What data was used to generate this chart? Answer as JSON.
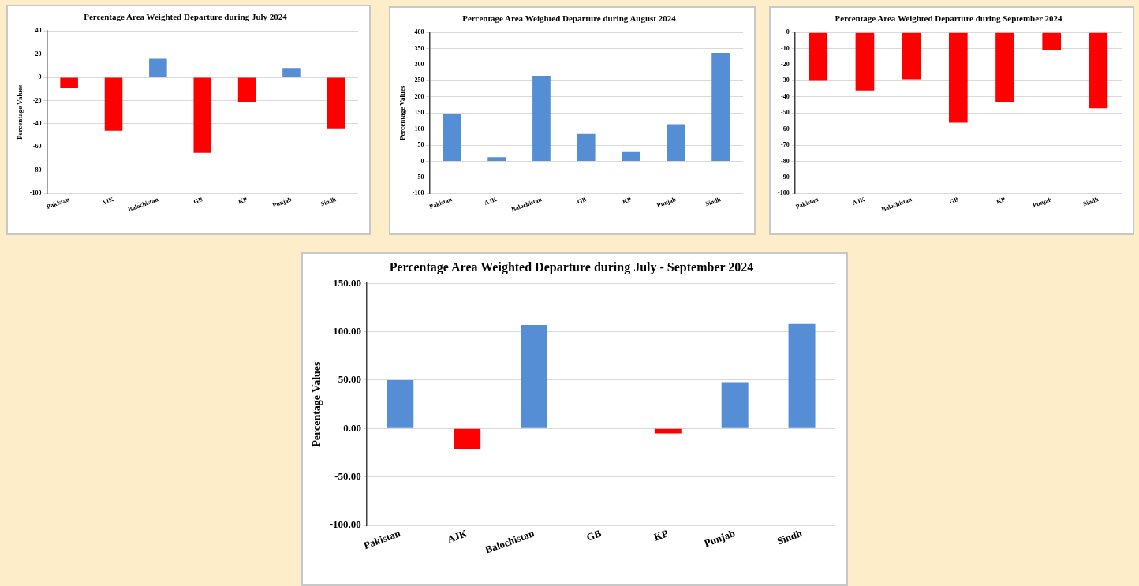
{
  "chart_data": [
    {
      "type": "bar",
      "title": "Percentage Area Weighted Departure during July 2024",
      "ylabel": "Percentage Values",
      "categories": [
        "Pakistan",
        "AJK",
        "Balochistan",
        "GB",
        "KP",
        "Punjab",
        "Sindh"
      ],
      "values": [
        -9,
        -46,
        16,
        -65,
        -21,
        8,
        -44
      ],
      "colors": [
        "#ff0000",
        "#ff0000",
        "#558ed5",
        "#ff0000",
        "#ff0000",
        "#558ed5",
        "#ff0000"
      ],
      "ylim": [
        -100,
        40
      ],
      "yticks": [
        -100,
        -80,
        -60,
        -40,
        -20,
        0,
        20,
        40
      ],
      "grid": "y"
    },
    {
      "type": "bar",
      "title": "Percentage Area Weighted Departure during August 2024",
      "ylabel": "Percentage Values",
      "categories": [
        "Pakistan",
        "AJK",
        "Balochistan",
        "GB",
        "KP",
        "Punjab",
        "Sindh"
      ],
      "values": [
        147,
        13,
        266,
        85,
        29,
        115,
        337
      ],
      "colors": [
        "#558ed5",
        "#558ed5",
        "#558ed5",
        "#558ed5",
        "#558ed5",
        "#558ed5",
        "#558ed5"
      ],
      "ylim": [
        -100,
        400
      ],
      "yticks": [
        -100,
        -50,
        0,
        50,
        100,
        150,
        200,
        250,
        300,
        350,
        400
      ],
      "grid": "y"
    },
    {
      "type": "bar",
      "title": "Percentage Area Weighted Departure during September 2024",
      "categories": [
        "Pakistan",
        "AJK",
        "Balochistan",
        "GB",
        "KP",
        "Punjab",
        "Sindh"
      ],
      "values": [
        -30,
        -36,
        -29,
        -56,
        -43,
        -11,
        -47
      ],
      "colors": [
        "#ff0000",
        "#ff0000",
        "#ff0000",
        "#ff0000",
        "#ff0000",
        "#ff0000",
        "#ff0000"
      ],
      "ylim": [
        -100,
        0
      ],
      "yticks": [
        -100,
        -90,
        -80,
        -70,
        -60,
        -50,
        -40,
        -30,
        -20,
        -10,
        0
      ],
      "grid": "y"
    },
    {
      "type": "bar",
      "title": "Percentage Area Weighted Departure during July - September 2024",
      "ylabel": "Percentage Values",
      "categories": [
        "Pakistan",
        "AJK",
        "Balochistan",
        "GB",
        "KP",
        "Punjab",
        "Sindh"
      ],
      "values": [
        50,
        -21,
        107,
        0,
        -5,
        48,
        108
      ],
      "colors": [
        "#558ed5",
        "#ff0000",
        "#558ed5",
        "#558ed5",
        "#ff0000",
        "#558ed5",
        "#558ed5"
      ],
      "ylim": [
        -100,
        150
      ],
      "yticks": [
        {
          "value": -100,
          "label": "-100.00"
        },
        {
          "value": -50,
          "label": "-50.00"
        },
        {
          "value": 0,
          "label": "0.00"
        },
        {
          "value": 50,
          "label": "50.00"
        },
        {
          "value": 100,
          "label": "100.00"
        },
        {
          "value": 150,
          "label": "150.00"
        }
      ],
      "grid": "y"
    }
  ]
}
